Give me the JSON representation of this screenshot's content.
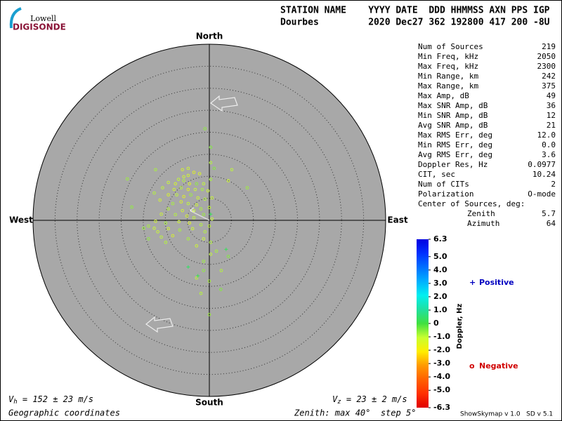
{
  "logo": {
    "top": "Lowell",
    "bottom": "DIGISONDE"
  },
  "header": {
    "line1": "STATION NAME    YYYY DATE  DDD HHMMSS AXN PPS IGP",
    "line2": "Dourbes         2020 Dec27 362 192800 417 200 -8U"
  },
  "stats": [
    {
      "label": "Num of Sources",
      "value": "219"
    },
    {
      "label": "Min Freq, kHz",
      "value": "2050"
    },
    {
      "label": "Max Freq, kHz",
      "value": "2300"
    },
    {
      "label": "Min Range, km",
      "value": "242"
    },
    {
      "label": "Max Range, km",
      "value": "375"
    },
    {
      "label": "Max Amp, dB",
      "value": "49"
    },
    {
      "label": "Max SNR Amp, dB",
      "value": "36"
    },
    {
      "label": "Min SNR Amp, dB",
      "value": "12"
    },
    {
      "label": "Avg SNR Amp, dB",
      "value": "21"
    },
    {
      "label": "Max RMS Err, deg",
      "value": "12.0"
    },
    {
      "label": "Min RMS Err, deg",
      "value": "0.0"
    },
    {
      "label": "Avg RMS Err, deg",
      "value": "3.6"
    },
    {
      "label": "Doppler Res, Hz",
      "value": "0.0977"
    },
    {
      "label": "CIT, sec",
      "value": "10.24"
    },
    {
      "label": "Num of CITs",
      "value": "2"
    },
    {
      "label": "Polarization",
      "value": "O-mode"
    }
  ],
  "center": {
    "title": "Center of Sources, deg:",
    "rows": [
      {
        "label": "Zenith",
        "value": "5.7"
      },
      {
        "label": "Azimuth",
        "value": "64"
      }
    ]
  },
  "compass": {
    "north": "North",
    "south": "South",
    "west": "West",
    "east": "East"
  },
  "velocity": {
    "horizontal": {
      "symbol": "V",
      "sub": "h",
      "text": " = 152 ± 23 m/s"
    },
    "vertical": {
      "symbol": "V",
      "sub": "z",
      "text": " = 23 ± 2 m/s"
    }
  },
  "footer": {
    "coords": "Geographic coordinates",
    "zenith": "Zenith: max 40°  step 5°",
    "version": "ShowSkymap v 1.0   SD v 5.1"
  },
  "chart_data": {
    "type": "scatter",
    "zenith_max": 40,
    "zenith_step": 5,
    "xlim": [
      -40,
      40
    ],
    "ylim": [
      -40,
      40
    ],
    "x": [
      -1.0,
      0.3,
      -4.8,
      1.1,
      5.1,
      -6.1,
      -12.2,
      -18.6,
      -9.3,
      -7.7,
      -5.8,
      -4.5,
      -2.9,
      -1.3,
      0.3,
      4.3,
      8.6,
      -10.6,
      -8.0,
      -6.4,
      -4.8,
      -3.2,
      -1.6,
      -0.3,
      -12.5,
      -9.3,
      -7.4,
      -5.8,
      -4.2,
      -2.6,
      -1.0,
      0.6,
      -11.2,
      -8.3,
      -6.4,
      -4.8,
      -2.9,
      -17.6,
      -9.3,
      -6.1,
      -3.5,
      -1.9,
      0,
      -10.9,
      -7.7,
      -5.1,
      -3.5,
      -1.3,
      0.6,
      -12.2,
      -9.9,
      -6.9,
      -4.5,
      -1.9,
      0,
      -14.9,
      -12.5,
      -9.3,
      -6.7,
      -3.8,
      -1.0,
      -13.8,
      -10.9,
      -8.3,
      -4.8,
      -1.3,
      0.3,
      -2.9,
      4.3,
      1.6,
      0.3,
      -1.3,
      -1.3,
      2.7,
      -2.9,
      0,
      2.6,
      -1.9,
      0,
      -4.8,
      -3.5,
      -2.2,
      -5.8,
      -7.0,
      -13.8,
      -11.7,
      -9.9,
      0.3,
      3.8,
      -4.8,
      -2.6,
      0.3
    ],
    "y": [
      20.8,
      13.1,
      11.8,
      11.8,
      11.5,
      11.5,
      11.5,
      9.4,
      8.6,
      8.3,
      9.0,
      8.3,
      8.3,
      8.3,
      9.3,
      9.0,
      7.4,
      7.4,
      7.0,
      7.4,
      7.0,
      7.0,
      7.0,
      6.7,
      6.2,
      5.8,
      5.8,
      5.4,
      5.8,
      5.1,
      4.8,
      5.1,
      4.6,
      3.8,
      4.2,
      3.8,
      3.5,
      3.0,
      2.6,
      2.2,
      2.2,
      2.6,
      2.9,
      1.4,
      1.3,
      1.0,
      0.6,
      1.3,
      0.3,
      -0.2,
      -0.6,
      -0.3,
      -0.6,
      -1.0,
      -1.3,
      -1.8,
      -1.8,
      -1.9,
      -2.2,
      -1.9,
      -2.6,
      -4.2,
      -3.8,
      -3.5,
      -4.2,
      -4.2,
      -5.0,
      -5.8,
      -8.2,
      -7.0,
      -7.7,
      -9.3,
      -11.4,
      -11.4,
      -13.1,
      -13.8,
      -15.7,
      -16.6,
      -21.4,
      10.2,
      10.9,
      10.6,
      9.9,
      9.3,
      -1.3,
      -2.6,
      -5.0,
      16.6,
      -6.6,
      -10.6,
      -12.6,
      1.4
    ],
    "doppler": [
      -0.6,
      -0.9,
      -1.2,
      -0.5,
      -1.0,
      -1.4,
      -0.8,
      -0.7,
      -1.1,
      -1.3,
      -0.9,
      -1.5,
      -0.6,
      -1.0,
      -0.8,
      -1.2,
      -0.7,
      -1.0,
      -1.3,
      -0.9,
      -1.6,
      -1.1,
      -0.8,
      -1.2,
      -0.9,
      -1.4,
      -1.0,
      -1.6,
      -0.7,
      -1.2,
      -0.9,
      -1.1,
      -1.3,
      -0.8,
      -1.5,
      -1.0,
      -1.2,
      -0.6,
      -0.9,
      -1.3,
      -1.1,
      -0.8,
      -1.0,
      -1.2,
      -0.9,
      -1.4,
      -1.0,
      -0.7,
      -1.1,
      -1.3,
      -0.8,
      -1.2,
      -1.5,
      -0.9,
      -1.0,
      -0.7,
      -1.1,
      -1.3,
      -0.8,
      -1.2,
      -0.9,
      -0.6,
      -1.0,
      -1.4,
      -0.8,
      -1.1,
      -0.9,
      -1.2,
      -0.5,
      -0.8,
      -1.0,
      -0.7,
      -0.6,
      -0.9,
      -1.0,
      -0.8,
      -0.5,
      -0.9,
      -0.7,
      -1.3,
      -1.6,
      -1.4,
      -1.2,
      -1.0,
      -0.8,
      -1.1,
      -0.9,
      -0.5,
      0.3,
      0.4,
      0.2,
      0.3
    ],
    "colorbar": {
      "label": "Doppler, Hz",
      "lim": [
        -6.3,
        6.3
      ],
      "colors": [
        "#e00000",
        "#ff3000",
        "#ff6000",
        "#ff9900",
        "#ffee00",
        "#c8ff30",
        "#40e040",
        "#20e0a0",
        "#00f0f0",
        "#00b0ff",
        "#0070ff",
        "#0030ff",
        "#0000e0"
      ],
      "ticks": [
        6.3,
        {
          "value": 5,
          "label": "5.0"
        },
        {
          "value": 4,
          "label": "4.0"
        },
        {
          "value": 3,
          "label": "3.0"
        },
        {
          "value": 2,
          "label": "2.0"
        },
        {
          "value": 1,
          "label": "1.0"
        },
        0,
        {
          "value": -1,
          "label": "-1.0"
        },
        {
          "value": -2,
          "label": "-2.0"
        },
        {
          "value": -3,
          "label": "-3.0"
        },
        {
          "value": -4,
          "label": "-4.0"
        },
        {
          "value": -5,
          "label": "-5.0"
        },
        -6.3
      ]
    },
    "legend": {
      "positive": {
        "marker": "+",
        "label": "Positive",
        "color": "#0000c0"
      },
      "negative": {
        "marker": "o",
        "label": "Negative",
        "color": "#d00000"
      }
    }
  }
}
